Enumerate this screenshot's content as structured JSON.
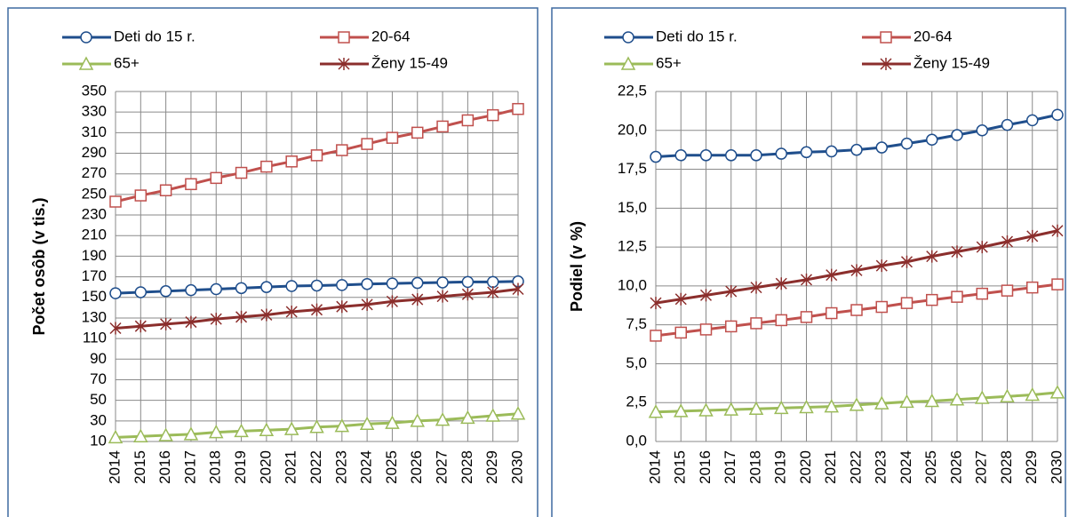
{
  "chart_data": [
    {
      "type": "line",
      "ylabel": "Počet osôb (v tis.)",
      "categories": [
        "2014",
        "2015",
        "2016",
        "2017",
        "2018",
        "2019",
        "2020",
        "2021",
        "2022",
        "2023",
        "2024",
        "2025",
        "2026",
        "2027",
        "2028",
        "2029",
        "2030"
      ],
      "ylim": [
        10,
        350
      ],
      "yticks": [
        10,
        30,
        50,
        70,
        90,
        110,
        130,
        150,
        170,
        190,
        210,
        230,
        250,
        270,
        290,
        310,
        330,
        350
      ],
      "grid": true,
      "series": [
        {
          "name": "Deti do 15 r.",
          "color": "#1f4e8c",
          "marker": "circle",
          "values": [
            154,
            155,
            156,
            157,
            158,
            159,
            160,
            161,
            161.5,
            162,
            163,
            163.5,
            164,
            164.5,
            165,
            165,
            165.5
          ]
        },
        {
          "name": "20-64",
          "color": "#c0504d",
          "marker": "square",
          "values": [
            243,
            249,
            254,
            260,
            266,
            271,
            277,
            282,
            288,
            293,
            299,
            305,
            310,
            316,
            322,
            327,
            333
          ]
        },
        {
          "name": "65+",
          "color": "#9bbb59",
          "marker": "triangle",
          "values": [
            14,
            15,
            16,
            17,
            19,
            20,
            21,
            22,
            24,
            25,
            27,
            28,
            30,
            31,
            33,
            35,
            37
          ]
        },
        {
          "name": "Ženy 15-49",
          "color": "#8b2e2c",
          "marker": "star",
          "values": [
            120,
            122,
            124,
            126,
            129,
            131,
            133,
            136,
            138,
            141,
            143,
            146,
            148,
            151,
            153,
            155,
            158
          ]
        }
      ]
    },
    {
      "type": "line",
      "ylabel": "Podiel (v %)",
      "categories": [
        "2014",
        "2015",
        "2016",
        "2017",
        "2018",
        "2019",
        "2020",
        "2021",
        "2022",
        "2023",
        "2024",
        "2025",
        "2026",
        "2027",
        "2028",
        "2029",
        "2030"
      ],
      "ylim": [
        0,
        22.5
      ],
      "yticks": [
        {
          "value": 0,
          "label": "0,0"
        },
        {
          "value": 2.5,
          "label": "2,5"
        },
        {
          "value": 5,
          "label": "5,0"
        },
        {
          "value": 7.5,
          "label": "7,5"
        },
        {
          "value": 10,
          "label": "10,0"
        },
        {
          "value": 12.5,
          "label": "12,5"
        },
        {
          "value": 15,
          "label": "15,0"
        },
        {
          "value": 17.5,
          "label": "17,5"
        },
        {
          "value": 20,
          "label": "20,0"
        },
        {
          "value": 22.5,
          "label": "22,5"
        }
      ],
      "grid": true,
      "series": [
        {
          "name": "Deti do 15 r.",
          "color": "#1f4e8c",
          "marker": "circle",
          "values": [
            18.3,
            18.4,
            18.4,
            18.4,
            18.4,
            18.5,
            18.6,
            18.65,
            18.75,
            18.9,
            19.15,
            19.4,
            19.7,
            20.0,
            20.35,
            20.65,
            21.0
          ]
        },
        {
          "name": "20-64",
          "color": "#c0504d",
          "marker": "square",
          "values": [
            6.8,
            7.0,
            7.2,
            7.4,
            7.6,
            7.8,
            8.0,
            8.25,
            8.45,
            8.65,
            8.9,
            9.1,
            9.3,
            9.5,
            9.7,
            9.9,
            10.1
          ]
        },
        {
          "name": "65+",
          "color": "#9bbb59",
          "marker": "triangle",
          "values": [
            1.9,
            1.95,
            2.0,
            2.05,
            2.1,
            2.15,
            2.2,
            2.25,
            2.35,
            2.45,
            2.55,
            2.6,
            2.7,
            2.8,
            2.9,
            3.0,
            3.15
          ]
        },
        {
          "name": "Ženy 15-49",
          "color": "#8b2e2c",
          "marker": "star",
          "values": [
            8.9,
            9.15,
            9.4,
            9.65,
            9.9,
            10.15,
            10.4,
            10.7,
            11.0,
            11.3,
            11.55,
            11.9,
            12.2,
            12.5,
            12.85,
            13.2,
            13.55
          ]
        }
      ]
    }
  ]
}
